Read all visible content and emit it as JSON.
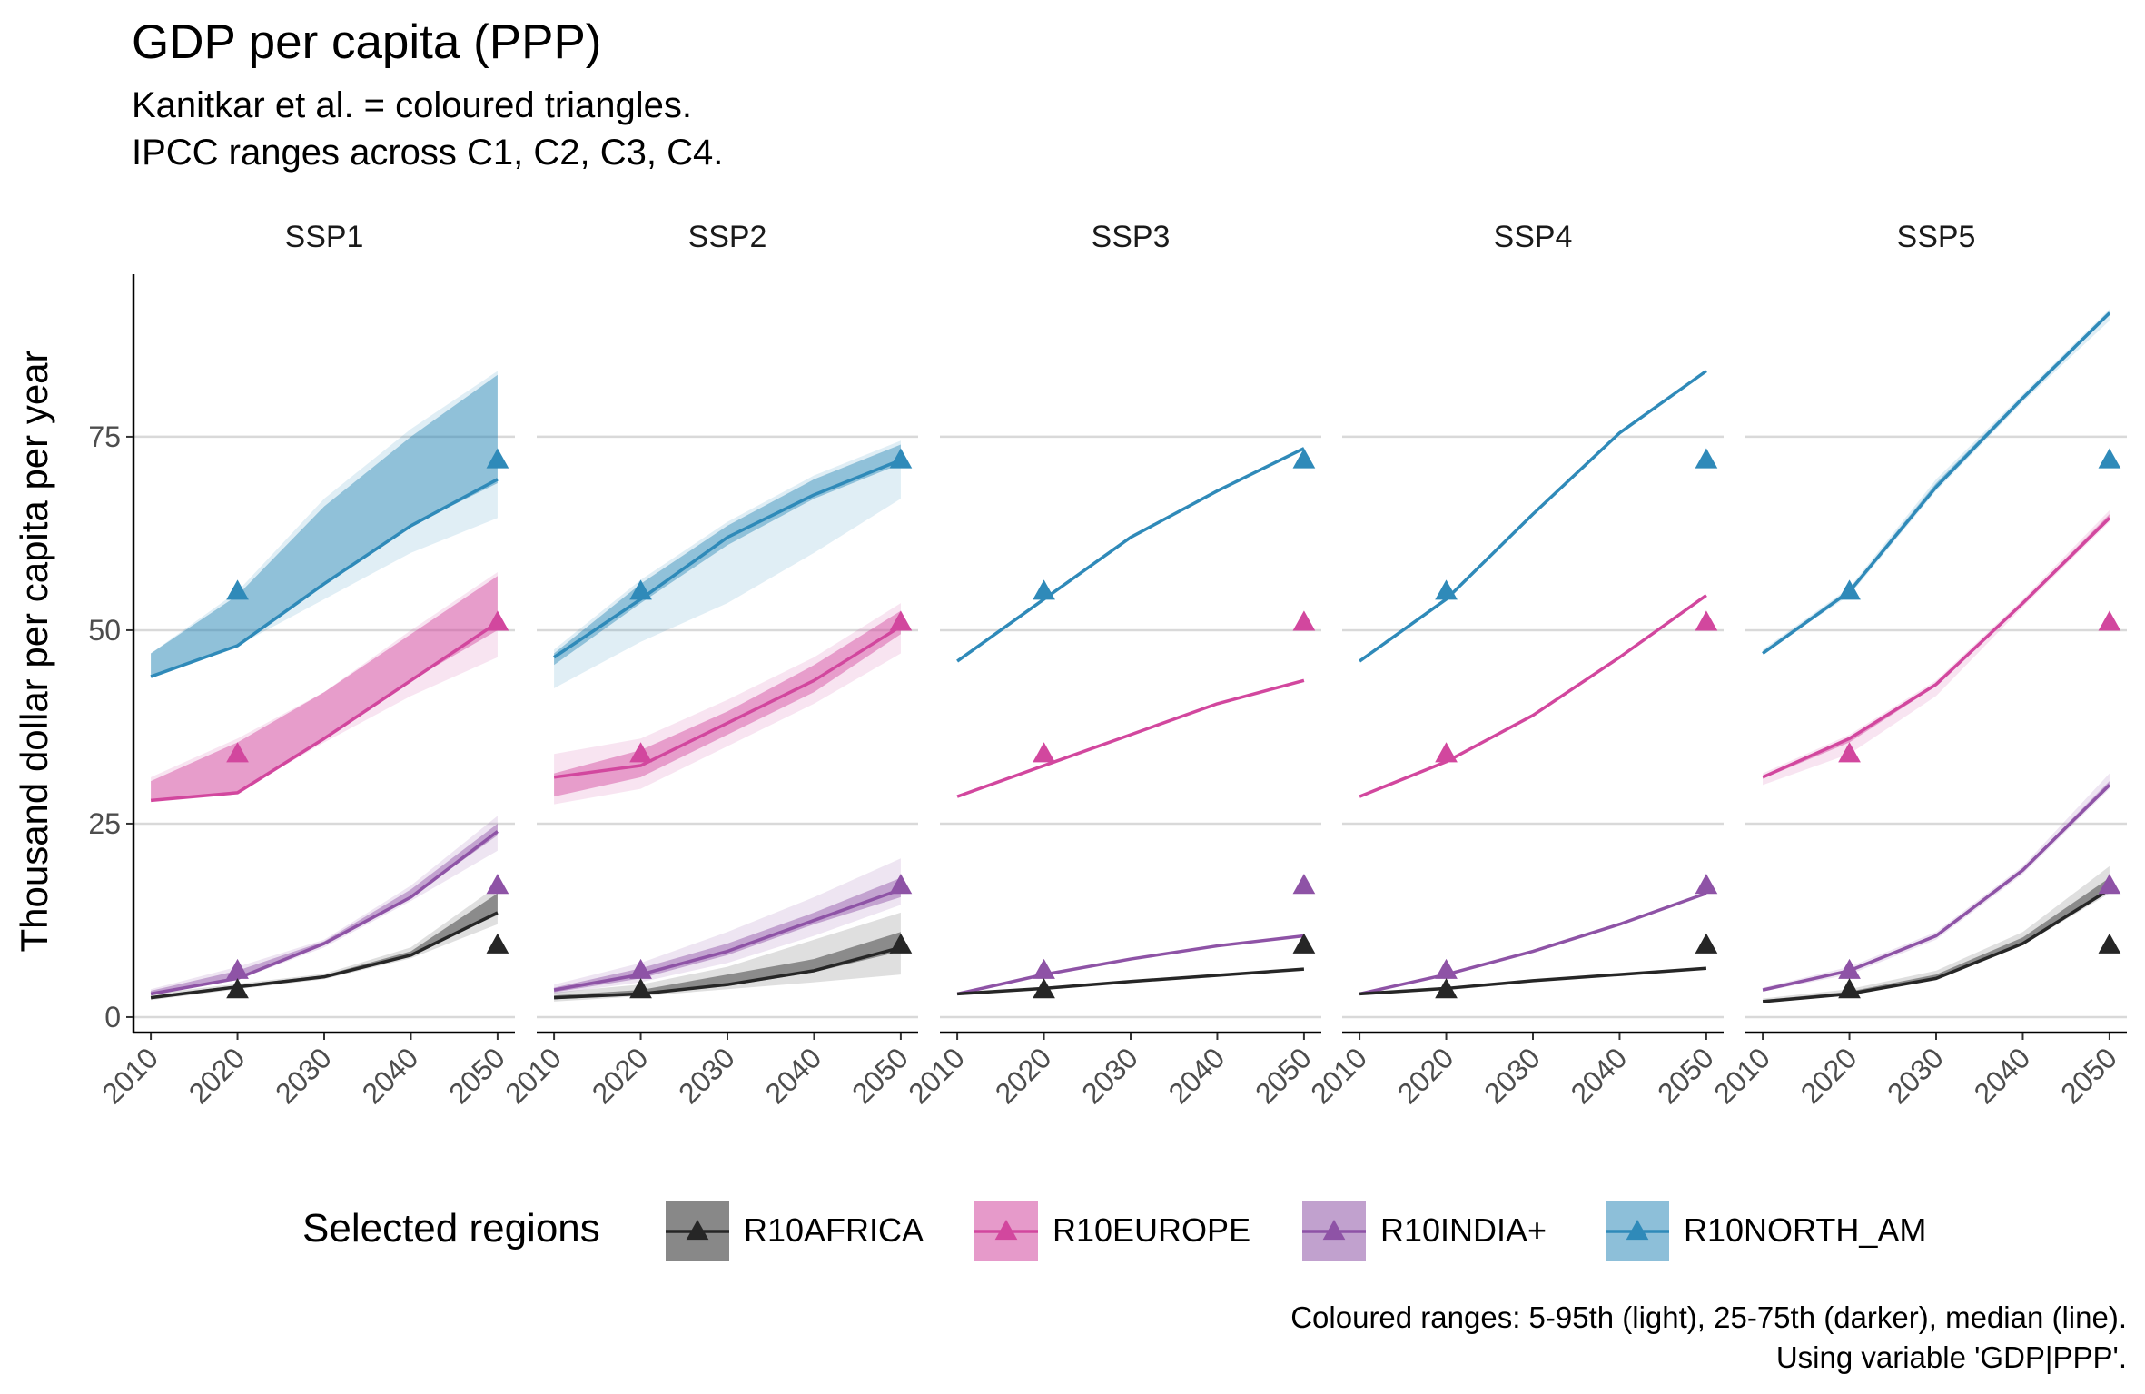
{
  "title": "GDP per capita (PPP)",
  "subtitle_lines": [
    "Kanitkar et al. = coloured triangles.",
    "IPCC ranges across C1, C2, C3, C4."
  ],
  "caption_lines": [
    "Coloured ranges: 5-95th (light), 25-75th (darker), median (line).",
    "Using variable 'GDP|PPP'."
  ],
  "colors": {
    "R10AFRICA": "#262626",
    "R10EUROPE": "#d2479e",
    "R10INDIA+": "#8e53a6",
    "R10NORTH_AM": "#2f8ab9",
    "grid": "#d9d9d9"
  },
  "chart_data": {
    "type": "line",
    "ylabel": "Thousand dollar per capita per year",
    "ylim": [
      -2,
      96
    ],
    "y_ticks": [
      0,
      25,
      50,
      75
    ],
    "x_ticks": [
      2010,
      2020,
      2030,
      2040,
      2050
    ],
    "xlim": [
      2008,
      2052
    ],
    "legend_title": "Selected regions",
    "legend_position": "bottom",
    "legend": [
      "R10AFRICA",
      "R10EUROPE",
      "R10INDIA+",
      "R10NORTH_AM"
    ],
    "panels": [
      {
        "name": "SSP1",
        "series": [
          {
            "region": "R10NORTH_AM",
            "x": [
              2010,
              2020,
              2030,
              2040,
              2050
            ],
            "median": [
              44,
              48,
              56,
              63.5,
              69.5
            ],
            "p5": [
              44,
              48,
              54,
              60,
              64.5
            ],
            "p95": [
              47,
              55,
              67,
              76,
              83.5
            ],
            "p25": [
              44,
              48,
              56,
              63.5,
              69
            ],
            "p75": [
              47,
              54.5,
              66,
              75,
              83
            ]
          },
          {
            "region": "R10EUROPE",
            "x": [
              2010,
              2020,
              2030,
              2040,
              2050
            ],
            "median": [
              28,
              29,
              36,
              43.5,
              51
            ],
            "p5": [
              28,
              29,
              35.5,
              41.5,
              46.5
            ],
            "p95": [
              31,
              36,
              42,
              50,
              57.5
            ],
            "p25": [
              28,
              29,
              36,
              43.5,
              50
            ],
            "p75": [
              30.5,
              35.5,
              42,
              49.5,
              57
            ]
          },
          {
            "region": "R10INDIA+",
            "x": [
              2010,
              2020,
              2030,
              2040,
              2050
            ],
            "median": [
              3,
              5,
              9.5,
              15.5,
              24
            ],
            "p5": [
              2.8,
              4.8,
              9,
              15,
              21.5
            ],
            "p95": [
              3.6,
              6.5,
              10,
              17,
              26
            ],
            "p25": [
              3,
              5,
              9.3,
              15.5,
              23.5
            ],
            "p75": [
              3.4,
              6,
              9.8,
              16.5,
              25
            ]
          },
          {
            "region": "R10AFRICA",
            "x": [
              2010,
              2020,
              2030,
              2040,
              2050
            ],
            "median": [
              2.5,
              3.9,
              5.2,
              8,
              13.5
            ],
            "p5": [
              2.2,
              3.6,
              4.9,
              7.6,
              12
            ],
            "p95": [
              3,
              4.3,
              5.6,
              9,
              17
            ],
            "p25": [
              2.4,
              3.8,
              5.1,
              8,
              13.2
            ],
            "p75": [
              2.7,
              4.1,
              5.4,
              8.5,
              16
            ]
          }
        ],
        "markers": [
          {
            "region": "R10NORTH_AM",
            "x": 2020,
            "y": 55
          },
          {
            "region": "R10NORTH_AM",
            "x": 2050,
            "y": 72
          },
          {
            "region": "R10EUROPE",
            "x": 2020,
            "y": 34
          },
          {
            "region": "R10EUROPE",
            "x": 2050,
            "y": 51
          },
          {
            "region": "R10INDIA+",
            "x": 2020,
            "y": 6
          },
          {
            "region": "R10INDIA+",
            "x": 2050,
            "y": 17
          },
          {
            "region": "R10AFRICA",
            "x": 2020,
            "y": 3.5
          },
          {
            "region": "R10AFRICA",
            "x": 2050,
            "y": 9.3
          }
        ]
      },
      {
        "name": "SSP2",
        "series": [
          {
            "region": "R10NORTH_AM",
            "x": [
              2010,
              2020,
              2030,
              2040,
              2050
            ],
            "median": [
              46.5,
              54,
              62,
              67.5,
              72
            ],
            "p5": [
              42.5,
              48.5,
              53.5,
              60,
              67
            ],
            "p95": [
              47.5,
              56.5,
              64,
              70,
              74.5
            ],
            "p25": [
              45.5,
              53.5,
              61,
              67,
              71.5
            ],
            "p75": [
              47,
              56,
              63.5,
              69.5,
              74
            ]
          },
          {
            "region": "R10EUROPE",
            "x": [
              2010,
              2020,
              2030,
              2040,
              2050
            ],
            "median": [
              31,
              32.5,
              38,
              43.5,
              50.5
            ],
            "p5": [
              27.5,
              29.5,
              35,
              40.5,
              47
            ],
            "p95": [
              34,
              36,
              41,
              46.5,
              53.5
            ],
            "p25": [
              28.5,
              31,
              36.5,
              42,
              49.5
            ],
            "p75": [
              31.5,
              34.5,
              39.5,
              45.5,
              52.5
            ]
          },
          {
            "region": "R10INDIA+",
            "x": [
              2010,
              2020,
              2030,
              2040,
              2050
            ],
            "median": [
              3.5,
              5.5,
              8.5,
              12.5,
              16.5
            ],
            "p5": [
              3,
              4.5,
              7,
              10.5,
              14.5
            ],
            "p95": [
              4.2,
              7,
              11,
              15.5,
              20.5
            ],
            "p25": [
              3.2,
              5,
              8,
              12,
              15.5
            ],
            "p75": [
              3.8,
              6.3,
              9.5,
              13.5,
              18
            ]
          },
          {
            "region": "R10AFRICA",
            "x": [
              2010,
              2020,
              2030,
              2040,
              2050
            ],
            "median": [
              2.5,
              3,
              4.2,
              6,
              9
            ],
            "p5": [
              2,
              2.7,
              3.6,
              4.5,
              5.5
            ],
            "p95": [
              3.2,
              4.2,
              6.5,
              10,
              13.5
            ],
            "p25": [
              2.3,
              3,
              4,
              5.8,
              8.5
            ],
            "p75": [
              2.8,
              3.5,
              5.5,
              7.5,
              11
            ]
          }
        ],
        "markers": [
          {
            "region": "R10NORTH_AM",
            "x": 2020,
            "y": 55
          },
          {
            "region": "R10NORTH_AM",
            "x": 2050,
            "y": 72
          },
          {
            "region": "R10EUROPE",
            "x": 2020,
            "y": 34
          },
          {
            "region": "R10EUROPE",
            "x": 2050,
            "y": 51
          },
          {
            "region": "R10INDIA+",
            "x": 2020,
            "y": 6
          },
          {
            "region": "R10INDIA+",
            "x": 2050,
            "y": 17
          },
          {
            "region": "R10AFRICA",
            "x": 2020,
            "y": 3.5
          },
          {
            "region": "R10AFRICA",
            "x": 2050,
            "y": 9.3
          }
        ]
      },
      {
        "name": "SSP3",
        "series": [
          {
            "region": "R10NORTH_AM",
            "x": [
              2010,
              2020,
              2030,
              2040,
              2050
            ],
            "median": [
              46,
              54,
              62,
              68,
              73.5
            ]
          },
          {
            "region": "R10EUROPE",
            "x": [
              2010,
              2020,
              2030,
              2040,
              2050
            ],
            "median": [
              28.5,
              32.5,
              36.5,
              40.5,
              43.5
            ]
          },
          {
            "region": "R10INDIA+",
            "x": [
              2010,
              2020,
              2030,
              2040,
              2050
            ],
            "median": [
              3,
              5.5,
              7.5,
              9.2,
              10.5
            ]
          },
          {
            "region": "R10AFRICA",
            "x": [
              2010,
              2020,
              2030,
              2040,
              2050
            ],
            "median": [
              3,
              3.7,
              4.6,
              5.4,
              6.2
            ]
          }
        ],
        "markers": [
          {
            "region": "R10NORTH_AM",
            "x": 2020,
            "y": 55
          },
          {
            "region": "R10NORTH_AM",
            "x": 2050,
            "y": 72
          },
          {
            "region": "R10EUROPE",
            "x": 2020,
            "y": 34
          },
          {
            "region": "R10EUROPE",
            "x": 2050,
            "y": 51
          },
          {
            "region": "R10INDIA+",
            "x": 2020,
            "y": 6
          },
          {
            "region": "R10INDIA+",
            "x": 2050,
            "y": 17
          },
          {
            "region": "R10AFRICA",
            "x": 2020,
            "y": 3.5
          },
          {
            "region": "R10AFRICA",
            "x": 2050,
            "y": 9.3
          }
        ]
      },
      {
        "name": "SSP4",
        "series": [
          {
            "region": "R10NORTH_AM",
            "x": [
              2010,
              2020,
              2030,
              2040,
              2050
            ],
            "median": [
              46,
              54,
              65,
              75.5,
              83.5
            ]
          },
          {
            "region": "R10EUROPE",
            "x": [
              2010,
              2020,
              2030,
              2040,
              2050
            ],
            "median": [
              28.5,
              33,
              39,
              46.5,
              54.5
            ]
          },
          {
            "region": "R10INDIA+",
            "x": [
              2010,
              2020,
              2030,
              2040,
              2050
            ],
            "median": [
              3,
              5.5,
              8.5,
              12,
              16
            ]
          },
          {
            "region": "R10AFRICA",
            "x": [
              2010,
              2020,
              2030,
              2040,
              2050
            ],
            "median": [
              3,
              3.7,
              4.7,
              5.5,
              6.3
            ]
          }
        ],
        "markers": [
          {
            "region": "R10NORTH_AM",
            "x": 2020,
            "y": 55
          },
          {
            "region": "R10NORTH_AM",
            "x": 2050,
            "y": 72
          },
          {
            "region": "R10EUROPE",
            "x": 2020,
            "y": 34
          },
          {
            "region": "R10EUROPE",
            "x": 2050,
            "y": 51
          },
          {
            "region": "R10INDIA+",
            "x": 2020,
            "y": 6
          },
          {
            "region": "R10INDIA+",
            "x": 2050,
            "y": 17
          },
          {
            "region": "R10AFRICA",
            "x": 2020,
            "y": 3.5
          },
          {
            "region": "R10AFRICA",
            "x": 2050,
            "y": 9.3
          }
        ]
      },
      {
        "name": "SSP5",
        "series": [
          {
            "region": "R10NORTH_AM",
            "x": [
              2010,
              2020,
              2030,
              2040,
              2050
            ],
            "median": [
              47,
              55,
              68.5,
              80,
              91
            ],
            "p5": [
              47,
              54.5,
              68,
              79.5,
              90
            ],
            "p95": [
              47.5,
              55.5,
              69.5,
              80.5,
              91.5
            ],
            "p25": [
              47,
              55,
              68.3,
              80,
              90.7
            ],
            "p75": [
              47.3,
              55.3,
              69,
              80.3,
              91.2
            ]
          },
          {
            "region": "R10EUROPE",
            "x": [
              2010,
              2020,
              2030,
              2040,
              2050
            ],
            "median": [
              31,
              36,
              43,
              53.5,
              64.5
            ],
            "p5": [
              30,
              34,
              41.5,
              53,
              64
            ],
            "p95": [
              31.5,
              36.5,
              43.5,
              54,
              65.5
            ],
            "p25": [
              30.8,
              35.5,
              42.8,
              53.3,
              64.3
            ],
            "p75": [
              31.2,
              36.2,
              43.2,
              53.7,
              65
            ]
          },
          {
            "region": "R10INDIA+",
            "x": [
              2010,
              2020,
              2030,
              2040,
              2050
            ],
            "median": [
              3.5,
              6,
              10.5,
              19,
              30
            ],
            "p5": [
              3.3,
              5.5,
              10,
              18.5,
              29.5
            ],
            "p95": [
              3.8,
              6.5,
              11,
              19.5,
              31.5
            ],
            "p25": [
              3.4,
              5.8,
              10.3,
              18.8,
              29.8
            ],
            "p75": [
              3.6,
              6.2,
              10.7,
              19.2,
              30.5
            ]
          },
          {
            "region": "R10AFRICA",
            "x": [
              2010,
              2020,
              2030,
              2040,
              2050
            ],
            "median": [
              2,
              3,
              5,
              9.5,
              16.5
            ],
            "p5": [
              2,
              3,
              5,
              9.3,
              16
            ],
            "p95": [
              2.4,
              3.6,
              6,
              11,
              19.5
            ],
            "p25": [
              2,
              3,
              5,
              9.5,
              16.3
            ],
            "p75": [
              2.2,
              3.3,
              5.5,
              10.3,
              18
            ]
          }
        ],
        "markers": [
          {
            "region": "R10NORTH_AM",
            "x": 2020,
            "y": 55
          },
          {
            "region": "R10NORTH_AM",
            "x": 2050,
            "y": 72
          },
          {
            "region": "R10EUROPE",
            "x": 2020,
            "y": 34
          },
          {
            "region": "R10EUROPE",
            "x": 2050,
            "y": 51
          },
          {
            "region": "R10INDIA+",
            "x": 2020,
            "y": 6
          },
          {
            "region": "R10INDIA+",
            "x": 2050,
            "y": 17
          },
          {
            "region": "R10AFRICA",
            "x": 2020,
            "y": 3.5
          },
          {
            "region": "R10AFRICA",
            "x": 2050,
            "y": 9.3
          }
        ]
      }
    ]
  }
}
